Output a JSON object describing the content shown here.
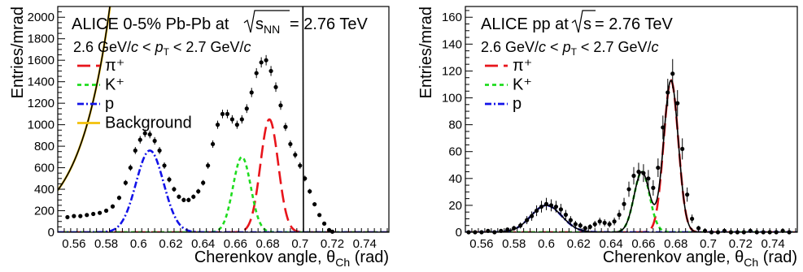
{
  "chart_data": [
    {
      "type": "line",
      "title": "ALICE 0-5% Pb-Pb at",
      "title_root": "s",
      "title_root_sub": "NN",
      "title_tail": " = 2.76 TeV",
      "range_prefix": "2.6 GeV/",
      "range_c1": "c",
      "range_mid": " < ",
      "range_p": "p",
      "range_psub": "T",
      "range_mid2": " < 2.7 GeV/",
      "range_c2": "c",
      "xlabel": "Cherenkov angle, θ",
      "xlabel_sub": "Ch",
      "xlabel_unit": " (rad)",
      "ylabel": "Entries/mrad",
      "xlim": [
        0.55,
        0.755
      ],
      "ylim": [
        0,
        2100
      ],
      "xticks": [
        "0.56",
        "0.58",
        "0.6",
        "0.62",
        "0.64",
        "0.66",
        "0.68",
        "0.7",
        "0.72",
        "0.74"
      ],
      "yticks": [
        "0",
        "200",
        "400",
        "600",
        "800",
        "1000",
        "1200",
        "1400",
        "1600",
        "1800",
        "2000"
      ],
      "legend": [
        {
          "name": "π⁺",
          "color": "#e8141b",
          "dash": "16,7"
        },
        {
          "name": "K⁺",
          "color": "#1fdc1f",
          "dash": "5,4"
        },
        {
          "name": "p",
          "color": "#1212e8",
          "dash": "8,3,2,3"
        },
        {
          "name": "Background",
          "color": "#f2c10a",
          "dash": ""
        }
      ],
      "series": [
        {
          "name": "π⁺",
          "shape": "gaussian",
          "amp": 1050,
          "mean": 0.681,
          "sigma": 0.0055
        },
        {
          "name": "K⁺",
          "shape": "gaussian",
          "amp": 700,
          "mean": 0.664,
          "sigma": 0.0055
        },
        {
          "name": "p",
          "shape": "gaussian",
          "amp": 760,
          "mean": 0.607,
          "sigma": 0.0085
        },
        {
          "name": "Background",
          "shape": "exp",
          "a": 1.65,
          "b": 52,
          "x0": 0.55,
          "xmax": 0.702
        }
      ],
      "data_points": {
        "x": [
          0.556,
          0.56,
          0.564,
          0.568,
          0.572,
          0.576,
          0.58,
          0.584,
          0.588,
          0.592,
          0.595,
          0.598,
          0.601,
          0.604,
          0.607,
          0.61,
          0.613,
          0.616,
          0.619,
          0.622,
          0.625,
          0.628,
          0.631,
          0.634,
          0.637,
          0.64,
          0.643,
          0.646,
          0.649,
          0.652,
          0.655,
          0.658,
          0.661,
          0.664,
          0.667,
          0.67,
          0.673,
          0.676,
          0.679,
          0.682,
          0.685,
          0.688,
          0.691,
          0.694,
          0.697,
          0.7,
          0.703,
          0.706,
          0.709,
          0.712,
          0.715,
          0.718,
          0.72
        ],
        "y": [
          140,
          150,
          150,
          160,
          170,
          180,
          200,
          240,
          320,
          460,
          600,
          760,
          860,
          920,
          910,
          850,
          760,
          620,
          490,
          400,
          330,
          300,
          300,
          330,
          380,
          460,
          620,
          820,
          1000,
          1100,
          1100,
          1050,
          1000,
          1050,
          1150,
          1300,
          1480,
          1580,
          1600,
          1500,
          1350,
          1180,
          980,
          820,
          720,
          620,
          500,
          380,
          260,
          160,
          80,
          20,
          5
        ]
      }
    },
    {
      "type": "line",
      "title": "ALICE pp at",
      "title_root": "s",
      "title_root_sub": "",
      "title_tail": " = 2.76 TeV",
      "range_prefix": "2.6 GeV/",
      "range_c1": "c",
      "range_mid": " < ",
      "range_p": "p",
      "range_psub": "T",
      "range_mid2": " < 2.7 GeV/",
      "range_c2": "c",
      "xlabel": "Cherenkov angle, θ",
      "xlabel_sub": "Ch",
      "xlabel_unit": " (rad)",
      "ylabel": "Entries/mrad",
      "xlim": [
        0.55,
        0.755
      ],
      "ylim": [
        0,
        168
      ],
      "xticks": [
        "0.56",
        "0.58",
        "0.6",
        "0.62",
        "0.64",
        "0.66",
        "0.68",
        "0.7",
        "0.72",
        "0.74"
      ],
      "yticks": [
        "0",
        "20",
        "40",
        "60",
        "80",
        "100",
        "120",
        "140",
        "160"
      ],
      "legend": [
        {
          "name": "π⁺",
          "color": "#e8141b",
          "dash": "16,7"
        },
        {
          "name": "K⁺",
          "color": "#1fdc1f",
          "dash": "5,4"
        },
        {
          "name": "p",
          "color": "#1212e8",
          "dash": "8,3,2,3"
        }
      ],
      "series": [
        {
          "name": "π⁺",
          "shape": "gaussian",
          "amp": 113,
          "mean": 0.677,
          "sigma": 0.0045
        },
        {
          "name": "K⁺",
          "shape": "gaussian",
          "amp": 45,
          "mean": 0.659,
          "sigma": 0.0048
        },
        {
          "name": "p",
          "shape": "gaussian",
          "amp": 20,
          "mean": 0.6,
          "sigma": 0.0095
        }
      ],
      "data_points": {
        "x": [
          0.552,
          0.556,
          0.56,
          0.564,
          0.568,
          0.572,
          0.576,
          0.58,
          0.584,
          0.588,
          0.591,
          0.594,
          0.597,
          0.6,
          0.603,
          0.606,
          0.609,
          0.612,
          0.615,
          0.618,
          0.621,
          0.624,
          0.627,
          0.63,
          0.633,
          0.636,
          0.639,
          0.642,
          0.645,
          0.648,
          0.651,
          0.654,
          0.657,
          0.66,
          0.663,
          0.666,
          0.669,
          0.672,
          0.675,
          0.678,
          0.681,
          0.684,
          0.687,
          0.69,
          0.694,
          0.698,
          0.702,
          0.706,
          0.71,
          0.714,
          0.718,
          0.722,
          0.726,
          0.73,
          0.734,
          0.738,
          0.742,
          0.746,
          0.75
        ],
        "y": [
          0,
          0,
          0,
          1,
          0,
          1,
          2,
          3,
          5,
          9,
          12,
          16,
          19,
          21,
          20,
          19,
          17,
          13,
          9,
          6,
          5,
          3,
          4,
          6,
          8,
          7,
          6,
          8,
          13,
          21,
          32,
          42,
          45,
          44,
          40,
          33,
          48,
          78,
          104,
          118,
          96,
          62,
          28,
          10,
          3,
          1,
          0,
          0,
          1,
          0,
          0,
          0,
          1,
          0,
          0,
          0,
          0,
          1,
          0
        ]
      }
    }
  ]
}
